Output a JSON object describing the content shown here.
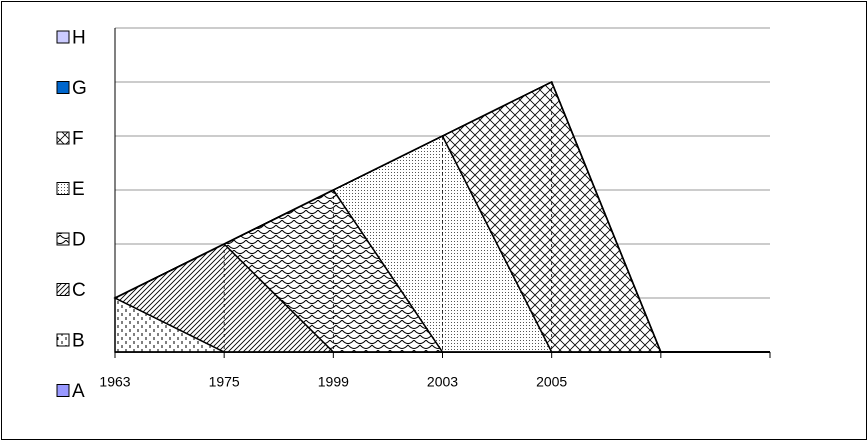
{
  "chart_data": {
    "type": "stacked_area",
    "categories": [
      "1963",
      "1975",
      "1999",
      "2003",
      "2005",
      null,
      null
    ],
    "series": [
      {
        "name": "A",
        "color": "#9999ff",
        "values": [
          0,
          0,
          0,
          0,
          0,
          0,
          0
        ]
      },
      {
        "name": "B",
        "color": "#ffffff",
        "pattern": "dashes",
        "values": [
          1,
          0,
          0,
          0,
          0,
          0,
          0
        ]
      },
      {
        "name": "C",
        "color": "#ffffff",
        "pattern": "diagonal",
        "values": [
          0,
          2,
          0,
          0,
          0,
          0,
          0
        ]
      },
      {
        "name": "D",
        "color": "#ffffff",
        "pattern": "scales",
        "values": [
          0,
          0,
          3,
          0,
          0,
          0,
          0
        ]
      },
      {
        "name": "E",
        "color": "#ffffff",
        "pattern": "dots",
        "values": [
          0,
          0,
          0,
          4,
          0,
          0,
          0
        ]
      },
      {
        "name": "F",
        "color": "#ffffff",
        "pattern": "crosshatch",
        "values": [
          0,
          0,
          0,
          0,
          5,
          0,
          0
        ]
      },
      {
        "name": "G",
        "color": "#0066cc",
        "values": [
          0,
          0,
          0,
          0,
          0,
          0,
          0
        ]
      },
      {
        "name": "H",
        "color": "#ccccff",
        "values": [
          0,
          0,
          0,
          0,
          0,
          0,
          0
        ]
      }
    ],
    "ylim": [
      0,
      6
    ],
    "yticks": [
      0,
      1,
      2,
      3,
      4,
      5,
      6
    ],
    "grid": true,
    "legend": "left"
  }
}
